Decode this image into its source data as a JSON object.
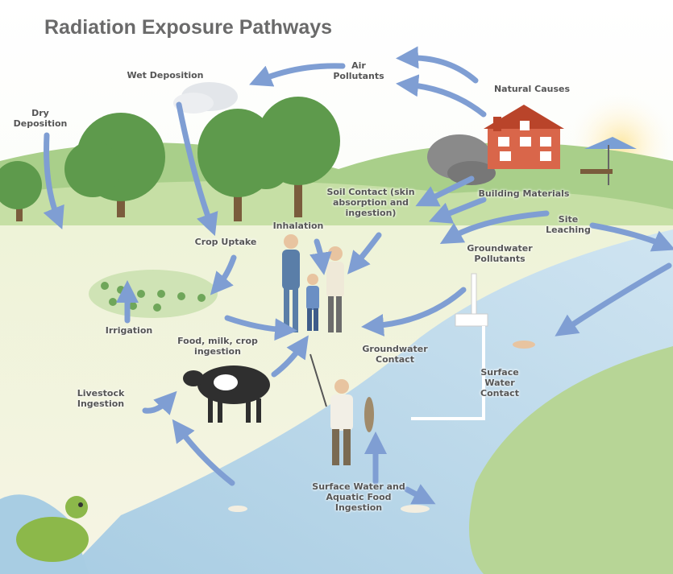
{
  "title": "Radiation Exposure Pathways",
  "labels": {
    "air_pollutants": "Air Pollutants",
    "natural_causes": "Natural Causes",
    "wet_deposition": "Wet Deposition",
    "dry_deposition": "Dry Deposition",
    "soil_contact": "Soil Contact (skin absorption and ingestion)",
    "building_materials": "Building Materials",
    "site_leaching": "Site Leaching",
    "inhalation": "Inhalation",
    "crop_uptake": "Crop Uptake",
    "groundwater_pollutants": "Groundwater Pollutants",
    "irrigation": "Irrigation",
    "food_ingestion": "Food, milk, crop ingestion",
    "groundwater_contact": "Groundwater Contact",
    "surface_water_contact": "Surface Water Contact",
    "livestock_ingestion": "Livestock Ingestion",
    "aquatic_ingestion": "Surface Water and Aquatic Food Ingestion"
  }
}
